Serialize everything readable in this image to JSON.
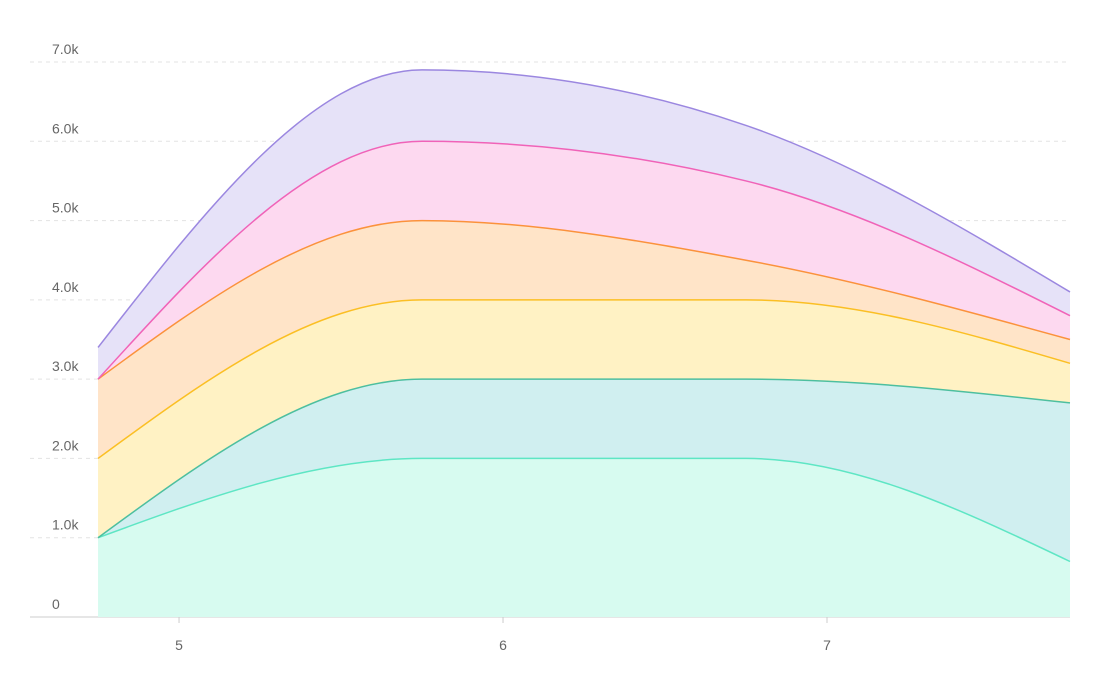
{
  "chart_data": {
    "type": "stacked-area",
    "x": [
      4.75,
      5.75,
      6.75,
      7.75
    ],
    "series": [
      {
        "color": "#5ee6c4",
        "fill": "#d7fbf0",
        "values": [
          1000,
          2000,
          2000,
          700
        ]
      },
      {
        "color": "#4dbf9f",
        "fill": "#d0eff0",
        "values": [
          0,
          1000,
          1000,
          2000
        ]
      },
      {
        "color": "#fbbf24",
        "fill": "#fff2c4",
        "values": [
          1000,
          1000,
          1000,
          500
        ]
      },
      {
        "color": "#fb923c",
        "fill": "#ffe4c8",
        "values": [
          1000,
          1000,
          500,
          300
        ]
      },
      {
        "color": "#f063b8",
        "fill": "#fdd9f0",
        "values": [
          0,
          1000,
          1000,
          300
        ]
      },
      {
        "color": "#9b87e0",
        "fill": "#e6e2f8",
        "values": [
          400,
          900,
          700,
          300
        ]
      }
    ],
    "xlim": [
      4.54,
      7.75
    ],
    "xticks": [
      5,
      6,
      7
    ],
    "ylim": [
      0,
      7000
    ],
    "yticks": [
      0,
      {
        "value": 1000,
        "label": "1.0k"
      },
      {
        "value": 2000,
        "label": "2.0k"
      },
      {
        "value": 3000,
        "label": "3.0k"
      },
      {
        "value": 4000,
        "label": "4.0k"
      },
      {
        "value": 5000,
        "label": "5.0k"
      },
      {
        "value": 6000,
        "label": "6.0k"
      },
      {
        "value": 7000,
        "label": "7.0k"
      }
    ],
    "grid": true
  }
}
